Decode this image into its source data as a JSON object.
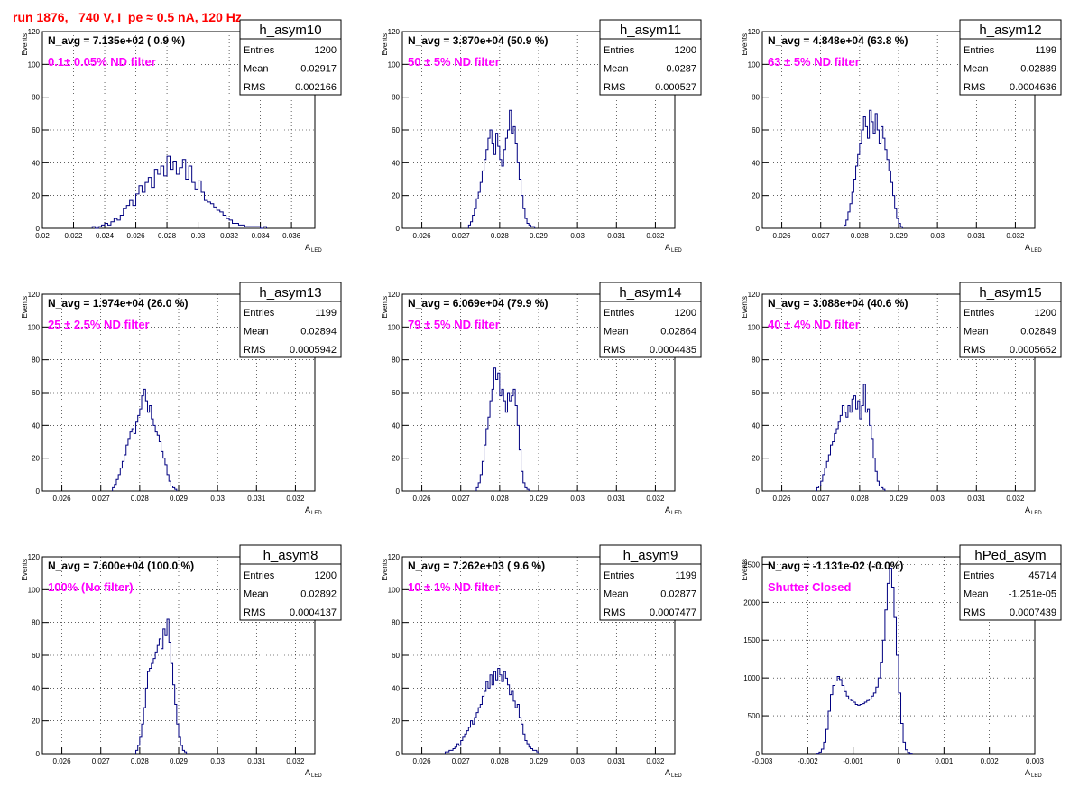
{
  "page_title": "run 1876,   740 V, I_pe ≈ 0.5 nA, 120 Hz",
  "y_axis_title": "Events",
  "x_axis_title_main": "A",
  "x_axis_title_sub": "LED",
  "stats_labels": {
    "entries": "Entries",
    "mean": "Mean",
    "rms": "RMS"
  },
  "colors": {
    "histogram": "#000080",
    "annotation": "#ff00ff",
    "title": "#ff0000",
    "grid": "#000000"
  },
  "chart_data": [
    {
      "type": "histogram",
      "name": "h_asym10",
      "navg": "N_avg = 7.135e+02 ( 0.9 %)",
      "filter": "0.1± 0.05% ND filter",
      "entries": "1200",
      "mean": "0.02917",
      "rms": "0.002166",
      "xlim": [
        0.02,
        0.0375
      ],
      "ylim": [
        0,
        120
      ],
      "xticks": [
        0.02,
        0.022,
        0.024,
        0.026,
        0.028,
        0.03,
        0.032,
        0.034,
        0.036
      ],
      "xticklabels": [
        "0.02",
        "0.022",
        "0.024",
        "0.026",
        "0.028",
        "0.03",
        "0.032",
        "0.034",
        "0.036"
      ],
      "yticks": [
        0,
        20,
        40,
        60,
        80,
        100,
        120
      ],
      "yticklabels": [
        "0",
        "20",
        "40",
        "60",
        "80",
        "100",
        "120"
      ],
      "bin_start": 0.0232,
      "bin_width": 0.0002,
      "counts": [
        1,
        0,
        1,
        2,
        3,
        2,
        4,
        6,
        5,
        8,
        12,
        14,
        17,
        14,
        21,
        26,
        22,
        28,
        31,
        25,
        36,
        33,
        38,
        32,
        44,
        36,
        41,
        33,
        37,
        42,
        30,
        38,
        28,
        24,
        29,
        22,
        17,
        16,
        15,
        13,
        11,
        10,
        8,
        6,
        5,
        3,
        3,
        2,
        2,
        1,
        1,
        1,
        1,
        1,
        0,
        1
      ]
    },
    {
      "type": "histogram",
      "name": "h_asym11",
      "navg": "N_avg = 3.870e+04 (50.9 %)",
      "filter": "50 ± 5% ND filter",
      "entries": "1200",
      "mean": "0.0287",
      "rms": "0.000527",
      "xlim": [
        0.0255,
        0.0325
      ],
      "ylim": [
        0,
        120
      ],
      "xticks": [
        0.026,
        0.027,
        0.028,
        0.029,
        0.03,
        0.031,
        0.032
      ],
      "xticklabels": [
        "0.026",
        "0.027",
        "0.028",
        "0.029",
        "0.03",
        "0.031",
        "0.032"
      ],
      "yticks": [
        0,
        20,
        40,
        60,
        80,
        100,
        120
      ],
      "yticklabels": [
        "0",
        "20",
        "40",
        "60",
        "80",
        "100",
        "120"
      ],
      "bin_start": 0.0272,
      "bin_width": 5e-05,
      "counts": [
        2,
        4,
        8,
        12,
        18,
        22,
        28,
        35,
        42,
        48,
        55,
        60,
        52,
        45,
        58,
        50,
        42,
        38,
        48,
        55,
        60,
        72,
        58,
        62,
        52,
        40,
        30,
        20,
        12,
        6,
        3,
        2,
        1,
        1
      ]
    },
    {
      "type": "histogram",
      "name": "h_asym12",
      "navg": "N_avg = 4.848e+04 (63.8 %)",
      "filter": "63 ± 5% ND filter",
      "entries": "1199",
      "mean": "0.02889",
      "rms": "0.0004636",
      "xlim": [
        0.0255,
        0.0325
      ],
      "ylim": [
        0,
        120
      ],
      "xticks": [
        0.026,
        0.027,
        0.028,
        0.029,
        0.03,
        0.031,
        0.032
      ],
      "xticklabels": [
        "0.026",
        "0.027",
        "0.028",
        "0.029",
        "0.03",
        "0.031",
        "0.032"
      ],
      "yticks": [
        0,
        20,
        40,
        60,
        80,
        100,
        120
      ],
      "yticklabels": [
        "0",
        "20",
        "40",
        "60",
        "80",
        "100",
        "120"
      ],
      "bin_start": 0.0276,
      "bin_width": 5e-05,
      "counts": [
        2,
        5,
        10,
        15,
        22,
        30,
        38,
        45,
        52,
        60,
        68,
        62,
        55,
        72,
        65,
        58,
        70,
        60,
        52,
        62,
        55,
        48,
        42,
        35,
        28,
        20,
        12,
        6,
        3,
        1
      ]
    },
    {
      "type": "histogram",
      "name": "h_asym13",
      "navg": "N_avg = 1.974e+04 (26.0 %)",
      "filter": "25 ± 2.5% ND filter",
      "entries": "1199",
      "mean": "0.02894",
      "rms": "0.0005942",
      "xlim": [
        0.0255,
        0.0325
      ],
      "ylim": [
        0,
        120
      ],
      "xticks": [
        0.026,
        0.027,
        0.028,
        0.029,
        0.03,
        0.031,
        0.032
      ],
      "xticklabels": [
        "0.026",
        "0.027",
        "0.028",
        "0.029",
        "0.03",
        "0.031",
        "0.032"
      ],
      "yticks": [
        0,
        20,
        40,
        60,
        80,
        100,
        120
      ],
      "yticklabels": [
        "0",
        "20",
        "40",
        "60",
        "80",
        "100",
        "120"
      ],
      "bin_start": 0.0273,
      "bin_width": 5e-05,
      "counts": [
        2,
        4,
        7,
        10,
        14,
        18,
        22,
        28,
        32,
        36,
        38,
        35,
        42,
        46,
        50,
        58,
        62,
        55,
        48,
        52,
        44,
        40,
        36,
        34,
        30,
        24,
        20,
        16,
        10,
        6,
        3,
        2,
        1
      ]
    },
    {
      "type": "histogram",
      "name": "h_asym14",
      "navg": "N_avg = 6.069e+04 (79.9 %)",
      "filter": "79 ± 5% ND filter",
      "entries": "1200",
      "mean": "0.02864",
      "rms": "0.0004435",
      "xlim": [
        0.0255,
        0.0325
      ],
      "ylim": [
        0,
        120
      ],
      "xticks": [
        0.026,
        0.027,
        0.028,
        0.029,
        0.03,
        0.031,
        0.032
      ],
      "xticklabels": [
        "0.026",
        "0.027",
        "0.028",
        "0.029",
        "0.03",
        "0.031",
        "0.032"
      ],
      "yticks": [
        0,
        20,
        40,
        60,
        80,
        100,
        120
      ],
      "yticklabels": [
        "0",
        "20",
        "40",
        "60",
        "80",
        "100",
        "120"
      ],
      "bin_start": 0.0274,
      "bin_width": 5e-05,
      "counts": [
        2,
        5,
        10,
        18,
        28,
        38,
        45,
        55,
        62,
        75,
        68,
        72,
        58,
        62,
        55,
        48,
        60,
        55,
        58,
        62,
        52,
        40,
        25,
        12,
        5,
        2,
        1
      ]
    },
    {
      "type": "histogram",
      "name": "h_asym15",
      "navg": "N_avg = 3.088e+04 (40.6 %)",
      "filter": "40 ± 4% ND filter",
      "entries": "1200",
      "mean": "0.02849",
      "rms": "0.0005652",
      "xlim": [
        0.0255,
        0.0325
      ],
      "ylim": [
        0,
        120
      ],
      "xticks": [
        0.026,
        0.027,
        0.028,
        0.029,
        0.03,
        0.031,
        0.032
      ],
      "xticklabels": [
        "0.026",
        "0.027",
        "0.028",
        "0.029",
        "0.03",
        "0.031",
        "0.032"
      ],
      "yticks": [
        0,
        20,
        40,
        60,
        80,
        100,
        120
      ],
      "yticklabels": [
        "0",
        "20",
        "40",
        "60",
        "80",
        "100",
        "120"
      ],
      "bin_start": 0.0269,
      "bin_width": 5e-05,
      "counts": [
        2,
        3,
        6,
        10,
        14,
        18,
        22,
        28,
        30,
        35,
        38,
        42,
        46,
        52,
        48,
        45,
        52,
        48,
        56,
        58,
        50,
        55,
        44,
        52,
        65,
        48,
        50,
        40,
        32,
        20,
        12,
        6,
        3,
        2,
        1
      ]
    },
    {
      "type": "histogram",
      "name": "h_asym8",
      "navg": "N_avg = 7.600e+04 (100.0 %)",
      "filter": "100% (No filter)",
      "entries": "1200",
      "mean": "0.02892",
      "rms": "0.0004137",
      "xlim": [
        0.0255,
        0.0325
      ],
      "ylim": [
        0,
        120
      ],
      "xticks": [
        0.026,
        0.027,
        0.028,
        0.029,
        0.03,
        0.031,
        0.032
      ],
      "xticklabels": [
        "0.026",
        "0.027",
        "0.028",
        "0.029",
        "0.03",
        "0.031",
        "0.032"
      ],
      "yticks": [
        0,
        20,
        40,
        60,
        80,
        100,
        120
      ],
      "yticklabels": [
        "0",
        "20",
        "40",
        "60",
        "80",
        "100",
        "120"
      ],
      "bin_start": 0.0279,
      "bin_width": 5e-05,
      "counts": [
        2,
        5,
        10,
        18,
        28,
        40,
        50,
        52,
        55,
        58,
        62,
        66,
        70,
        64,
        76,
        72,
        82,
        68,
        55,
        42,
        30,
        18,
        10,
        5,
        2,
        1
      ]
    },
    {
      "type": "histogram",
      "name": "h_asym9",
      "navg": "N_avg = 7.262e+03 ( 9.6 %)",
      "filter": "10 ± 1% ND filter",
      "entries": "1199",
      "mean": "0.02877",
      "rms": "0.0007477",
      "xlim": [
        0.0255,
        0.0325
      ],
      "ylim": [
        0,
        120
      ],
      "xticks": [
        0.026,
        0.027,
        0.028,
        0.029,
        0.03,
        0.031,
        0.032
      ],
      "xticklabels": [
        "0.026",
        "0.027",
        "0.028",
        "0.029",
        "0.03",
        "0.031",
        "0.032"
      ],
      "yticks": [
        0,
        20,
        40,
        60,
        80,
        100,
        120
      ],
      "yticklabels": [
        "0",
        "20",
        "40",
        "60",
        "80",
        "100",
        "120"
      ],
      "bin_start": 0.0266,
      "bin_width": 5e-05,
      "counts": [
        1,
        1,
        2,
        2,
        3,
        4,
        6,
        5,
        8,
        10,
        12,
        14,
        16,
        20,
        18,
        22,
        25,
        28,
        30,
        35,
        38,
        44,
        40,
        48,
        42,
        50,
        45,
        52,
        48,
        44,
        50,
        46,
        42,
        36,
        38,
        32,
        28,
        30,
        22,
        18,
        12,
        8,
        6,
        4,
        3,
        2,
        2,
        1
      ]
    },
    {
      "type": "histogram",
      "name": "hPed_asym",
      "navg": "N_avg = -1.131e-02 (-0.0%)",
      "filter": "Shutter Closed",
      "entries": "45714",
      "mean": "-1.251e-05",
      "rms": "0.0007439",
      "xlim": [
        -0.003,
        0.003
      ],
      "ylim": [
        0,
        2600
      ],
      "xticks": [
        -0.003,
        -0.002,
        -0.001,
        0,
        0.001,
        0.002,
        0.003
      ],
      "xticklabels": [
        "-0.003",
        "-0.002",
        "-0.001",
        "0",
        "0.001",
        "0.002",
        "0.003"
      ],
      "yticks": [
        0,
        500,
        1000,
        1500,
        2000,
        2500
      ],
      "yticklabels": [
        "0",
        "500",
        "1000",
        "1500",
        "2000",
        "2500"
      ],
      "bin_start": -0.0018,
      "bin_width": 5e-05,
      "counts": [
        5,
        20,
        60,
        150,
        320,
        560,
        780,
        900,
        960,
        1020,
        980,
        900,
        820,
        760,
        720,
        700,
        680,
        650,
        640,
        650,
        660,
        680,
        700,
        720,
        760,
        800,
        880,
        1000,
        1200,
        1500,
        1900,
        2250,
        2450,
        2200,
        1800,
        1300,
        800,
        400,
        150,
        50,
        15,
        5
      ]
    }
  ]
}
